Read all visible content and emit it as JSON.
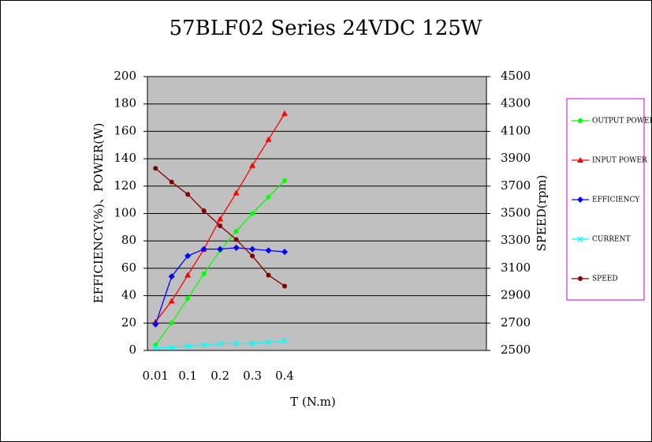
{
  "chart_data": {
    "type": "line",
    "title": "57BLF02 Series 24VDC 125W",
    "x_label": "T (N.m)",
    "y_label": "EFFICIENCY(%)、POWER(W)",
    "y2_label": "SPEED(rpm)",
    "categories": [
      "0.01",
      null,
      "0.1",
      null,
      "0.2",
      null,
      "0.3",
      null,
      "0.4",
      null,
      null,
      null,
      null,
      null,
      null,
      null,
      null,
      null,
      null,
      null,
      null
    ],
    "ylim": [
      0,
      200
    ],
    "yticks": [
      0,
      20,
      40,
      60,
      80,
      100,
      120,
      140,
      160,
      180,
      200
    ],
    "y2lim": [
      2500,
      4500
    ],
    "y2ticks": [
      2500,
      2700,
      2900,
      3100,
      3300,
      3500,
      3700,
      3900,
      4100,
      4300,
      4500
    ],
    "grid": true,
    "background": "#c0c0c0",
    "legend": "right",
    "series": [
      {
        "name": "OUTPUT POWER",
        "color": "#00ff00",
        "marker": "circle",
        "values": [
          4,
          20,
          38,
          56,
          73,
          87,
          100,
          112,
          124,
          null,
          null,
          null,
          null,
          null,
          null,
          null,
          null,
          null,
          null,
          null,
          null
        ]
      },
      {
        "name": "INPUT POWER",
        "color": "#ff0000",
        "marker": "triangle",
        "values": [
          21,
          36,
          55,
          74,
          96,
          115,
          135,
          154,
          173,
          null,
          null,
          null,
          null,
          null,
          null,
          null,
          null,
          null,
          null,
          null,
          null
        ]
      },
      {
        "name": "EFFICIENCY",
        "color": "#0000ff",
        "marker": "diamond",
        "values": [
          19,
          54,
          69,
          74,
          74,
          75,
          74,
          73,
          72,
          null,
          null,
          null,
          null,
          null,
          null,
          null,
          null,
          null,
          null,
          null,
          null
        ]
      },
      {
        "name": "CURRENT",
        "color": "#00ffff",
        "marker": "cross",
        "values": [
          2,
          2,
          3,
          4,
          5,
          5,
          5,
          6,
          7,
          null,
          null,
          null,
          null,
          null,
          null,
          null,
          null,
          null,
          null,
          null,
          null
        ]
      },
      {
        "name": "SPEED",
        "color": "#800000",
        "marker": "circle",
        "axis": "y2",
        "values": [
          3830,
          3730,
          3640,
          3520,
          3410,
          3310,
          3190,
          3050,
          2970,
          null,
          null,
          null,
          null,
          null,
          null,
          null,
          null,
          null,
          null,
          null,
          null
        ]
      }
    ]
  }
}
